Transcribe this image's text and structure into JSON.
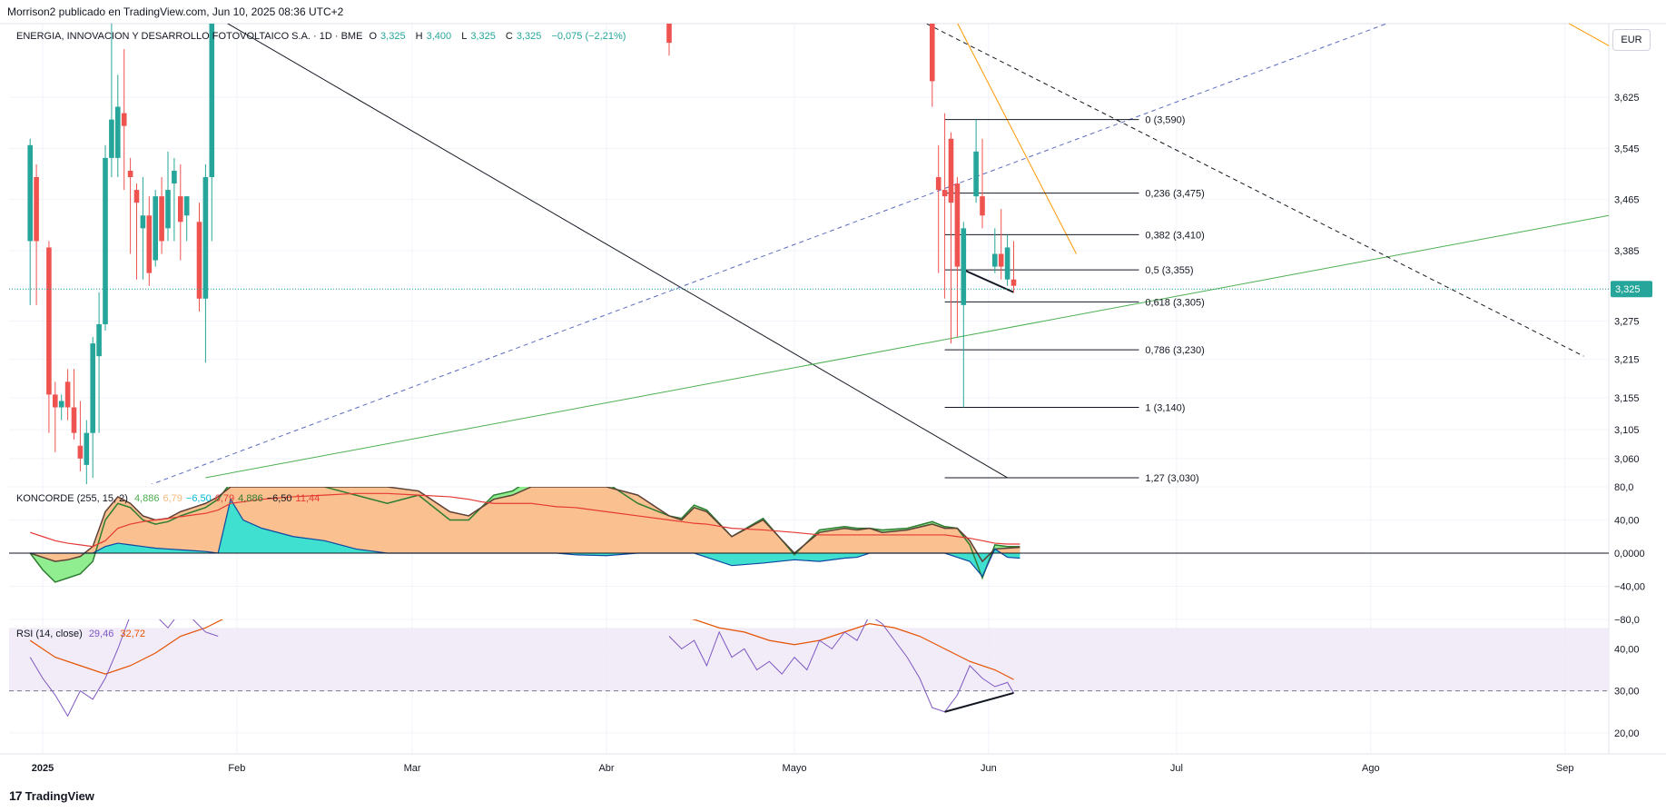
{
  "header": {
    "published": "Morrison2 publicado en TradingView.com, Jun 10, 2025 08:36 UTC+2"
  },
  "footer": {
    "brand": "TradingView",
    "logo_glyph": "17"
  },
  "price_legend": {
    "symbol": "ENERGIA, INNOVACION Y DESARROLLO FOTOVOLTAICO S.A. · 1D · BME",
    "o_label": "O",
    "o": "3,325",
    "h_label": "H",
    "h": "3,400",
    "l_label": "L",
    "l": "3,325",
    "c_label": "C",
    "c": "3,325",
    "change": "−0,075 (−2,21%)"
  },
  "currency": "EUR",
  "koncorde_legend": {
    "name": "KONCORDE (255, 15, 2)",
    "values": [
      "4,886",
      "6,79",
      "−6,50",
      "6,79",
      "4,886",
      "−6,50",
      "11,44"
    ],
    "colors": [
      "#4caf50",
      "#f5b97f",
      "#00bcd4",
      "#e53935",
      "#2e7d32",
      "#131722",
      "#e53935"
    ]
  },
  "rsi_legend": {
    "name": "RSI (14, close)",
    "rsi": "29,46",
    "ma": "32,72"
  },
  "colors": {
    "up": "#26a69a",
    "down": "#ef5350",
    "fib": "#131722",
    "rsi_line": "#7e57c2",
    "rsi_ma": "#e65100",
    "kon_orange": "#fbc08f",
    "kon_cyan": "#40e0d0",
    "kon_green": "#90ee90",
    "green_line": "#4caf50",
    "blue_dashed": "#5c6bc0",
    "orange_line": "#ff9800",
    "last_price": "#26a69a"
  },
  "chart_data": [
    {
      "type": "candlestick",
      "title": "ENERGIA, INNOVACION Y DESARROLLO FOTOVOLTAICO S.A. · 1D · BME",
      "currency": "EUR",
      "ylim": [
        3.02,
        3.74
      ],
      "y_ticks": [
        "3,625",
        "3,545",
        "3,465",
        "3,385",
        "3,325",
        "3,275",
        "3,215",
        "3,155",
        "3,105",
        "3,060"
      ],
      "y_tick_values": [
        3.625,
        3.545,
        3.465,
        3.385,
        3.325,
        3.275,
        3.215,
        3.155,
        3.105,
        3.06
      ],
      "last_price": 3.325,
      "last_price_label": "3,325",
      "x_ticks": [
        "2025",
        "Feb",
        "Mar",
        "Abr",
        "Mayo",
        "Jun",
        "Jul",
        "Ago",
        "Sep"
      ],
      "x_tick_days": [
        0,
        31,
        59,
        90,
        120,
        151,
        181,
        212,
        243
      ],
      "candles": [
        {
          "d": -2,
          "o": 3.4,
          "h": 3.56,
          "l": 3.3,
          "c": 3.55
        },
        {
          "d": -1,
          "o": 3.5,
          "h": 3.52,
          "l": 3.3,
          "c": 3.4
        },
        {
          "d": 1,
          "o": 3.39,
          "h": 3.4,
          "l": 3.1,
          "c": 3.16
        },
        {
          "d": 2,
          "o": 3.16,
          "h": 3.18,
          "l": 3.07,
          "c": 3.14
        },
        {
          "d": 3,
          "o": 3.14,
          "h": 3.16,
          "l": 3.12,
          "c": 3.15
        },
        {
          "d": 4,
          "o": 3.18,
          "h": 3.2,
          "l": 3.12,
          "c": 3.14
        },
        {
          "d": 5,
          "o": 3.14,
          "h": 3.2,
          "l": 3.09,
          "c": 3.1
        },
        {
          "d": 6,
          "o": 3.08,
          "h": 3.15,
          "l": 3.04,
          "c": 3.06
        },
        {
          "d": 7,
          "o": 3.05,
          "h": 3.12,
          "l": 3.0,
          "c": 3.1
        },
        {
          "d": 8,
          "o": 3.1,
          "h": 3.25,
          "l": 3.03,
          "c": 3.24
        },
        {
          "d": 9,
          "o": 3.22,
          "h": 3.32,
          "l": 3.1,
          "c": 3.27
        },
        {
          "d": 10,
          "o": 3.27,
          "h": 3.55,
          "l": 3.26,
          "c": 3.53
        },
        {
          "d": 11,
          "o": 3.53,
          "h": 3.76,
          "l": 3.5,
          "c": 3.59
        },
        {
          "d": 12,
          "o": 3.53,
          "h": 3.66,
          "l": 3.5,
          "c": 3.61
        },
        {
          "d": 13,
          "o": 3.6,
          "h": 3.7,
          "l": 3.48,
          "c": 3.58
        },
        {
          "d": 14,
          "o": 3.51,
          "h": 3.53,
          "l": 3.38,
          "c": 3.5
        },
        {
          "d": 15,
          "o": 3.48,
          "h": 3.49,
          "l": 3.34,
          "c": 3.46
        },
        {
          "d": 16,
          "o": 3.42,
          "h": 3.5,
          "l": 3.34,
          "c": 3.44
        },
        {
          "d": 17,
          "o": 3.44,
          "h": 3.47,
          "l": 3.33,
          "c": 3.35
        },
        {
          "d": 18,
          "o": 3.37,
          "h": 3.48,
          "l": 3.36,
          "c": 3.47
        },
        {
          "d": 19,
          "o": 3.47,
          "h": 3.5,
          "l": 3.38,
          "c": 3.4
        },
        {
          "d": 20,
          "o": 3.42,
          "h": 3.54,
          "l": 3.4,
          "c": 3.48
        },
        {
          "d": 21,
          "o": 3.49,
          "h": 3.53,
          "l": 3.4,
          "c": 3.51
        },
        {
          "d": 22,
          "o": 3.47,
          "h": 3.52,
          "l": 3.37,
          "c": 3.43
        },
        {
          "d": 23,
          "o": 3.44,
          "h": 3.47,
          "l": 3.4,
          "c": 3.47
        },
        {
          "d": 25,
          "o": 3.43,
          "h": 3.46,
          "l": 3.29,
          "c": 3.31
        },
        {
          "d": 26,
          "o": 3.31,
          "h": 3.52,
          "l": 3.21,
          "c": 3.5
        },
        {
          "d": 27,
          "o": 3.5,
          "h": 3.78,
          "l": 3.4,
          "c": 3.74
        },
        {
          "d": 100,
          "o": 3.74,
          "h": 3.75,
          "l": 3.69,
          "c": 3.71
        },
        {
          "d": 142,
          "o": 3.75,
          "h": 3.78,
          "l": 3.61,
          "c": 3.65
        },
        {
          "d": 143,
          "o": 3.5,
          "h": 3.55,
          "l": 3.35,
          "c": 3.48
        },
        {
          "d": 144,
          "o": 3.48,
          "h": 3.6,
          "l": 3.31,
          "c": 3.47
        },
        {
          "d": 145,
          "o": 3.56,
          "h": 3.57,
          "l": 3.24,
          "c": 3.46
        },
        {
          "d": 146,
          "o": 3.49,
          "h": 3.5,
          "l": 3.25,
          "c": 3.36
        },
        {
          "d": 147,
          "o": 3.3,
          "h": 3.43,
          "l": 3.14,
          "c": 3.42
        },
        {
          "d": 149,
          "o": 3.47,
          "h": 3.59,
          "l": 3.46,
          "c": 3.54
        },
        {
          "d": 150,
          "o": 3.47,
          "h": 3.56,
          "l": 3.42,
          "c": 3.44
        },
        {
          "d": 152,
          "o": 3.36,
          "h": 3.42,
          "l": 3.35,
          "c": 3.38
        },
        {
          "d": 153,
          "o": 3.38,
          "h": 3.45,
          "l": 3.34,
          "c": 3.36
        },
        {
          "d": 154,
          "o": 3.34,
          "h": 3.41,
          "l": 3.33,
          "c": 3.39
        },
        {
          "d": 155,
          "o": 3.34,
          "h": 3.4,
          "l": 3.32,
          "c": 3.33
        }
      ],
      "fibonacci": [
        {
          "label": "0 (3,590)",
          "value": 3.59
        },
        {
          "label": "0,236 (3,475)",
          "value": 3.475
        },
        {
          "label": "0,382 (3,410)",
          "value": 3.41
        },
        {
          "label": "0,5 (3,355)",
          "value": 3.355
        },
        {
          "label": "0,618 (3,305)",
          "value": 3.305
        },
        {
          "label": "0,786 (3,230)",
          "value": 3.23
        },
        {
          "label": "1 (3,140)",
          "value": 3.14
        },
        {
          "label": "1,27 (3,030)",
          "value": 3.03
        }
      ]
    },
    {
      "type": "area",
      "title": "KONCORDE (255, 15, 2)",
      "ylim": [
        -80,
        80
      ],
      "y_ticks": [
        "80,0",
        "40,00",
        "0,0000",
        "−40,00",
        "−80,0"
      ],
      "y_tick_values": [
        80,
        40,
        0,
        -40,
        -80
      ],
      "days": [
        -2,
        0,
        2,
        4,
        6,
        8,
        10,
        12,
        14,
        16,
        18,
        20,
        22,
        24,
        26,
        28,
        30,
        32,
        35,
        40,
        45,
        50,
        55,
        60,
        65,
        68,
        70,
        72,
        75,
        78,
        80,
        82,
        85,
        90,
        95,
        100,
        102,
        104,
        106,
        110,
        115,
        120,
        124,
        128,
        130,
        132,
        134,
        138,
        142,
        144,
        146,
        148,
        150,
        152,
        154,
        156
      ],
      "orange": [
        0,
        -5,
        -10,
        -8,
        -4,
        8,
        50,
        68,
        60,
        45,
        40,
        42,
        50,
        55,
        60,
        68,
        80,
        80,
        80,
        80,
        80,
        80,
        80,
        75,
        50,
        45,
        55,
        65,
        70,
        80,
        80,
        80,
        80,
        80,
        70,
        45,
        40,
        55,
        50,
        20,
        40,
        0,
        25,
        30,
        28,
        30,
        25,
        28,
        35,
        30,
        30,
        15,
        -10,
        5,
        6,
        7
      ],
      "green": [
        0,
        -20,
        -35,
        -30,
        -25,
        -10,
        40,
        60,
        55,
        40,
        35,
        38,
        45,
        50,
        55,
        65,
        85,
        90,
        90,
        90,
        80,
        70,
        60,
        70,
        40,
        40,
        55,
        70,
        75,
        90,
        90,
        90,
        88,
        85,
        60,
        45,
        42,
        58,
        52,
        20,
        42,
        -2,
        28,
        32,
        30,
        30,
        28,
        30,
        38,
        32,
        30,
        10,
        -30,
        10,
        8,
        8
      ],
      "cyan": [
        0,
        0,
        0,
        0,
        0,
        0,
        8,
        12,
        10,
        8,
        6,
        5,
        4,
        3,
        2,
        0,
        65,
        40,
        30,
        20,
        15,
        5,
        0,
        0,
        0,
        0,
        0,
        0,
        0,
        0,
        0,
        0,
        -2,
        -3,
        0,
        0,
        0,
        0,
        -5,
        -15,
        -12,
        -8,
        -10,
        -6,
        -5,
        0,
        0,
        0,
        0,
        0,
        -5,
        -10,
        -28,
        5,
        -5,
        -6
      ],
      "red_ma": [
        25,
        20,
        15,
        12,
        10,
        8,
        15,
        30,
        35,
        38,
        40,
        42,
        44,
        46,
        48,
        52,
        60,
        62,
        65,
        68,
        70,
        72,
        72,
        70,
        68,
        65,
        62,
        60,
        60,
        60,
        58,
        56,
        55,
        50,
        45,
        40,
        38,
        36,
        35,
        30,
        28,
        25,
        22,
        22,
        22,
        22,
        22,
        22,
        22,
        22,
        20,
        18,
        15,
        12,
        11,
        11
      ]
    },
    {
      "type": "line",
      "title": "RSI (14, close)",
      "ylim": [
        15,
        47
      ],
      "y_ticks": [
        "40,00",
        "30,00",
        "20,00"
      ],
      "y_tick_values": [
        40,
        30,
        20
      ],
      "reference_line": 30,
      "band": [
        30,
        45
      ],
      "series": [
        {
          "name": "RSI",
          "days": [
            -2,
            0,
            2,
            4,
            6,
            8,
            10,
            12,
            14,
            16,
            18,
            20,
            22,
            24,
            26,
            28,
            100,
            102,
            104,
            106,
            108,
            110,
            112,
            114,
            116,
            118,
            120,
            122,
            124,
            126,
            128,
            130,
            132,
            134,
            136,
            138,
            140,
            142,
            144,
            146,
            148,
            150,
            152,
            154,
            155
          ],
          "values": [
            38,
            33,
            29,
            24,
            30,
            28,
            33,
            40,
            48,
            50,
            48,
            45,
            49,
            47,
            44,
            43,
            43,
            40,
            42,
            36,
            44,
            38,
            40,
            35,
            37,
            34,
            38,
            35,
            42,
            40,
            44,
            42,
            48,
            46,
            42,
            38,
            33,
            26,
            25,
            29,
            36,
            33,
            31,
            32,
            29.5
          ]
        },
        {
          "name": "RSI-based MA",
          "days": [
            -2,
            2,
            6,
            10,
            14,
            18,
            22,
            26,
            30,
            100,
            104,
            108,
            112,
            116,
            120,
            124,
            128,
            132,
            136,
            140,
            144,
            148,
            152,
            155
          ],
          "values": [
            42,
            38,
            36,
            34,
            36,
            39,
            43,
            45,
            48,
            48,
            47,
            45,
            44,
            42,
            41,
            42,
            44,
            46,
            45,
            43,
            40,
            37,
            35,
            32.7
          ]
        }
      ]
    }
  ]
}
